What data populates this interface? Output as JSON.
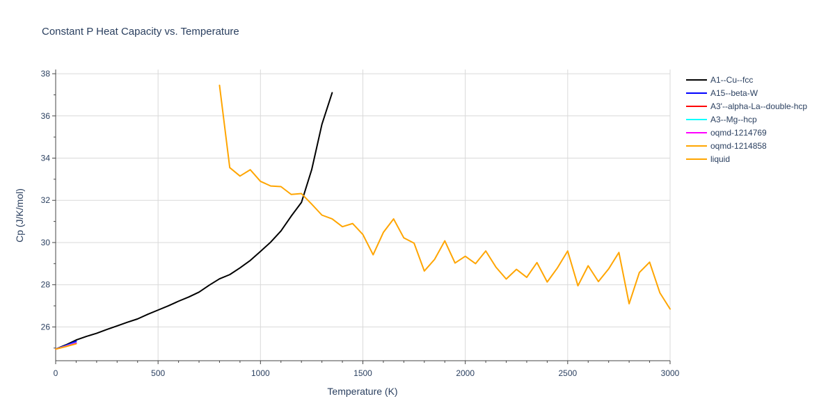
{
  "chart_data": {
    "type": "line",
    "title": "Constant P Heat Capacity vs. Temperature",
    "xlabel": "Temperature (K)",
    "ylabel": "Cp (J/K/mol)",
    "xlim": [
      0,
      3000
    ],
    "ylim": [
      24.4,
      38.2
    ],
    "xticks": [
      0,
      500,
      1000,
      1500,
      2000,
      2500,
      3000
    ],
    "yticks": [
      26,
      28,
      30,
      32,
      34,
      36,
      38
    ],
    "grid": true,
    "legend_position": "top-right",
    "series": [
      {
        "name": "A1--Cu--fcc",
        "color": "#000000",
        "x": [
          0,
          50,
          100,
          150,
          200,
          250,
          300,
          350,
          400,
          450,
          500,
          550,
          600,
          650,
          700,
          750,
          800,
          850,
          900,
          950,
          1000,
          1050,
          1100,
          1150,
          1200,
          1250,
          1300,
          1350
        ],
        "y": [
          24.95,
          25.15,
          25.38,
          25.55,
          25.7,
          25.88,
          26.05,
          26.22,
          26.38,
          26.6,
          26.8,
          27.0,
          27.22,
          27.42,
          27.65,
          27.98,
          28.28,
          28.48,
          28.8,
          29.15,
          29.58,
          30.02,
          30.55,
          31.25,
          31.9,
          33.45,
          35.6,
          37.1
        ]
      },
      {
        "name": "A15--beta-W",
        "color": "#0000ff",
        "x": [
          0,
          50,
          100
        ],
        "y": [
          24.95,
          25.12,
          25.32
        ]
      },
      {
        "name": "A3'--alpha-La--double-hcp",
        "color": "#ff0000",
        "x": [
          0,
          50,
          100
        ],
        "y": [
          24.95,
          25.08,
          25.22
        ]
      },
      {
        "name": "A3--Mg--hcp",
        "color": "#00ffff",
        "x": [
          0,
          50,
          100
        ],
        "y": [
          24.95,
          25.1,
          25.26
        ]
      },
      {
        "name": "oqmd-1214769",
        "color": "#ff00ff",
        "x": [
          0,
          50,
          100
        ],
        "y": [
          24.95,
          25.09,
          25.24
        ]
      },
      {
        "name": "oqmd-1214858",
        "color": "#ffa500",
        "x": [
          0,
          50,
          100
        ],
        "y": [
          24.95,
          25.07,
          25.2
        ]
      },
      {
        "name": "liquid",
        "color": "#ffa500",
        "x": [
          800,
          850,
          900,
          950,
          1000,
          1050,
          1100,
          1150,
          1200,
          1250,
          1300,
          1350,
          1400,
          1450,
          1500,
          1550,
          1600,
          1650,
          1700,
          1750,
          1800,
          1850,
          1900,
          1950,
          2000,
          2050,
          2100,
          2150,
          2200,
          2250,
          2300,
          2350,
          2400,
          2450,
          2500,
          2550,
          2600,
          2650,
          2700,
          2750,
          2800,
          2850,
          2900,
          2950,
          3000
        ],
        "y": [
          37.45,
          33.55,
          33.15,
          33.45,
          32.9,
          32.68,
          32.65,
          32.28,
          32.32,
          31.82,
          31.3,
          31.12,
          30.75,
          30.9,
          30.38,
          29.42,
          30.48,
          31.12,
          30.22,
          29.97,
          28.65,
          29.2,
          30.08,
          29.03,
          29.35,
          29.0,
          29.6,
          28.83,
          28.27,
          28.73,
          28.35,
          29.05,
          28.13,
          28.8,
          29.6,
          27.95,
          28.9,
          28.15,
          28.75,
          29.53,
          27.1,
          28.58,
          29.07,
          27.62,
          26.85
        ]
      }
    ]
  }
}
